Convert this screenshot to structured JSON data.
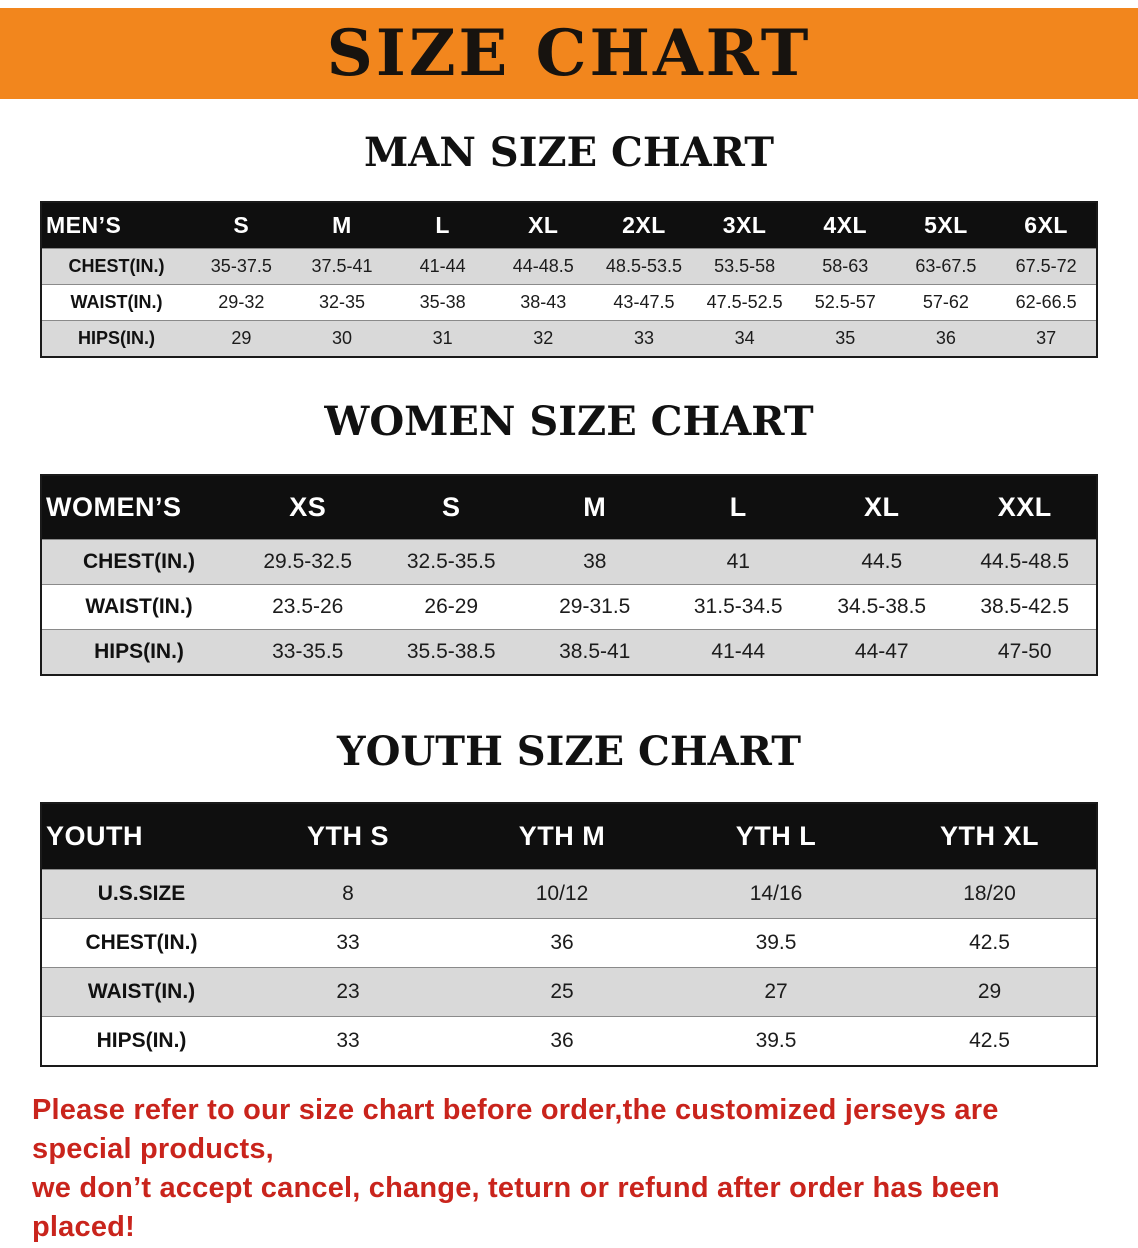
{
  "banner": {
    "title": "SIZE CHART"
  },
  "colors": {
    "accent": "#f2861d",
    "table-header-bg": "#0f0f0f",
    "row-stripe": "#d9d9d9",
    "heading-black": "#111111",
    "disclaimer-red": "#c9241c"
  },
  "sections": [
    {
      "id": "men",
      "heading": "MAN SIZE CHART",
      "table": {
        "header": [
          "MEN’S",
          "S",
          "M",
          "L",
          "XL",
          "2XL",
          "3XL",
          "4XL",
          "5XL",
          "6XL"
        ],
        "rows": [
          [
            "CHEST(IN.)",
            "35-37.5",
            "37.5-41",
            "41-44",
            "44-48.5",
            "48.5-53.5",
            "53.5-58",
            "58-63",
            "63-67.5",
            "67.5-72"
          ],
          [
            "WAIST(IN.)",
            "29-32",
            "32-35",
            "35-38",
            "38-43",
            "43-47.5",
            "47.5-52.5",
            "52.5-57",
            "57-62",
            "62-66.5"
          ],
          [
            "HIPS(IN.)",
            "29",
            "30",
            "31",
            "32",
            "33",
            "34",
            "35",
            "36",
            "37"
          ]
        ]
      }
    },
    {
      "id": "women",
      "heading": "WOMEN SIZE CHART",
      "table": {
        "header": [
          "WOMEN’S",
          "XS",
          "S",
          "M",
          "L",
          "XL",
          "XXL"
        ],
        "rows": [
          [
            "CHEST(IN.)",
            "29.5-32.5",
            "32.5-35.5",
            "38",
            "41",
            "44.5",
            "44.5-48.5"
          ],
          [
            "WAIST(IN.)",
            "23.5-26",
            "26-29",
            "29-31.5",
            "31.5-34.5",
            "34.5-38.5",
            "38.5-42.5"
          ],
          [
            "HIPS(IN.)",
            "33-35.5",
            "35.5-38.5",
            "38.5-41",
            "41-44",
            "44-47",
            "47-50"
          ]
        ]
      }
    },
    {
      "id": "youth",
      "heading": "YOUTH SIZE CHART",
      "table": {
        "header": [
          "YOUTH",
          "YTH S",
          "YTH M",
          "YTH L",
          "YTH XL"
        ],
        "rows": [
          [
            "U.S.SIZE",
            "8",
            "10/12",
            "14/16",
            "18/20"
          ],
          [
            "CHEST(IN.)",
            "33",
            "36",
            "39.5",
            "42.5"
          ],
          [
            "WAIST(IN.)",
            "23",
            "25",
            "27",
            "29"
          ],
          [
            "HIPS(IN.)",
            "33",
            "36",
            "39.5",
            "42.5"
          ]
        ]
      }
    }
  ],
  "disclaimer": {
    "line1": "Please refer to our size chart before order,the customized jerseys are special products,",
    "line2": "we don’t accept cancel, change, teturn or refund after order has been placed!"
  }
}
